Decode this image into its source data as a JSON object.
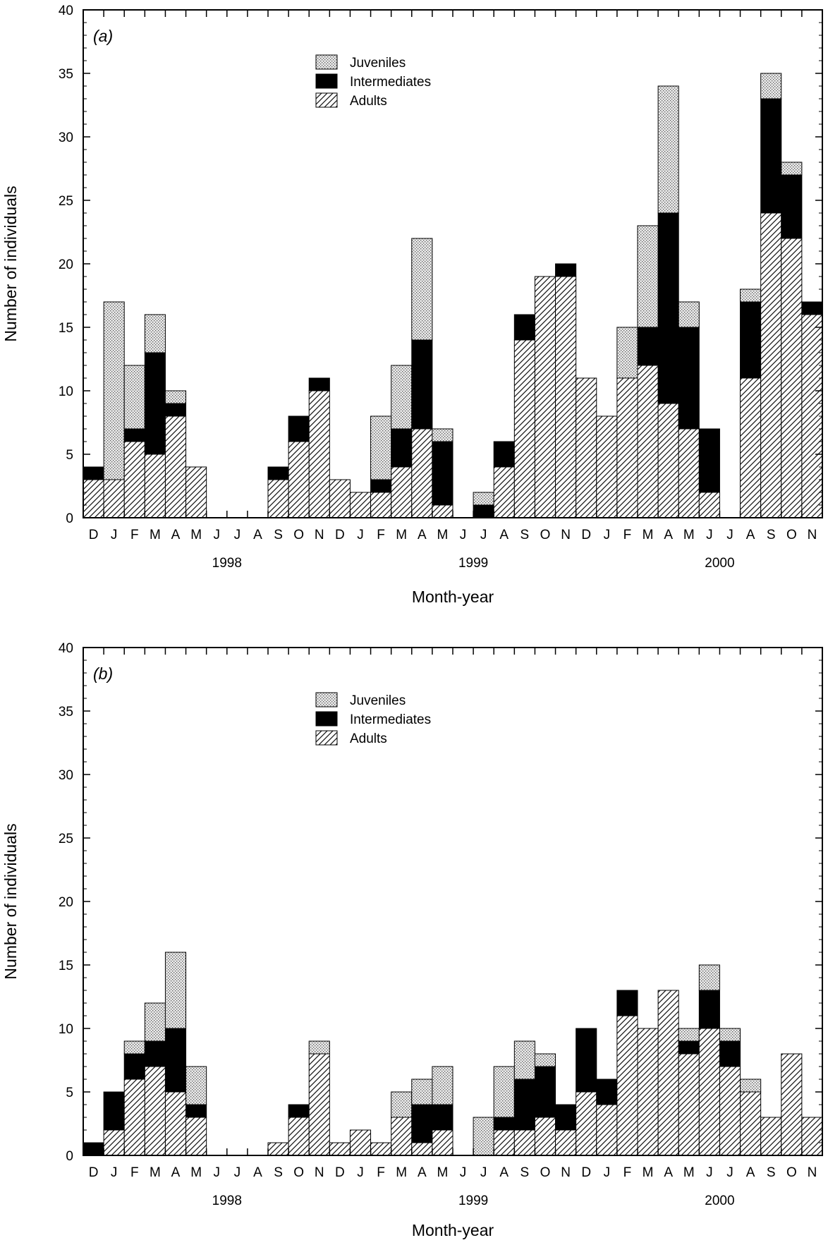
{
  "legend": {
    "juveniles": "Juveniles",
    "intermediates": "Intermediates",
    "adults": "Adults"
  },
  "colors": {
    "juveniles_bg": "#e9e9e9",
    "juveniles_dot": "#555555",
    "intermediates": "#000000",
    "adults_bg": "#ffffff",
    "hatch": "#111111",
    "axis": "#000000"
  },
  "chart_data": [
    {
      "type": "bar",
      "panel_label": "a",
      "stacked": true,
      "xlabel": "Month-year",
      "ylabel": "Number of individuals",
      "ylim": [
        0,
        40
      ],
      "yticks": [
        0,
        5,
        10,
        15,
        20,
        25,
        30,
        35,
        40
      ],
      "categories": [
        "D",
        "J",
        "F",
        "M",
        "A",
        "M",
        "J",
        "J",
        "A",
        "S",
        "O",
        "N",
        "D",
        "J",
        "F",
        "M",
        "A",
        "M",
        "J",
        "J",
        "A",
        "S",
        "O",
        "N",
        "D",
        "J",
        "F",
        "M",
        "A",
        "M",
        "J",
        "J",
        "A",
        "S",
        "O",
        "N"
      ],
      "year_labels": [
        {
          "label": "1998",
          "center_index": 6.5
        },
        {
          "label": "1999",
          "center_index": 18.5
        },
        {
          "label": "2000",
          "center_index": 30.5
        }
      ],
      "series": [
        {
          "name": "Adults",
          "values": [
            3,
            3,
            6,
            5,
            8,
            4,
            0,
            0,
            0,
            3,
            6,
            10,
            3,
            2,
            2,
            4,
            7,
            1,
            0,
            0,
            4,
            14,
            19,
            19,
            11,
            8,
            11,
            12,
            9,
            7,
            2,
            0,
            11,
            24,
            22,
            16
          ]
        },
        {
          "name": "Intermediates",
          "values": [
            1,
            0,
            1,
            8,
            1,
            0,
            0,
            0,
            0,
            1,
            2,
            1,
            0,
            0,
            1,
            3,
            7,
            5,
            0,
            1,
            2,
            2,
            0,
            1,
            0,
            0,
            0,
            3,
            15,
            8,
            5,
            0,
            6,
            9,
            5,
            1
          ]
        },
        {
          "name": "Juveniles",
          "values": [
            0,
            14,
            5,
            3,
            1,
            0,
            0,
            0,
            0,
            0,
            0,
            0,
            0,
            0,
            5,
            5,
            8,
            1,
            0,
            1,
            0,
            0,
            0,
            0,
            0,
            0,
            4,
            8,
            10,
            2,
            0,
            0,
            1,
            2,
            1,
            0
          ]
        }
      ]
    },
    {
      "type": "bar",
      "panel_label": "b",
      "stacked": true,
      "xlabel": "Month-year",
      "ylabel": "Number of individuals",
      "ylim": [
        0,
        40
      ],
      "yticks": [
        0,
        5,
        10,
        15,
        20,
        25,
        30,
        35,
        40
      ],
      "categories": [
        "D",
        "J",
        "F",
        "M",
        "A",
        "M",
        "J",
        "J",
        "A",
        "S",
        "O",
        "N",
        "D",
        "J",
        "F",
        "M",
        "A",
        "M",
        "J",
        "J",
        "A",
        "S",
        "O",
        "N",
        "D",
        "J",
        "F",
        "M",
        "A",
        "M",
        "J",
        "J",
        "A",
        "S",
        "O",
        "N"
      ],
      "year_labels": [
        {
          "label": "1998",
          "center_index": 6.5
        },
        {
          "label": "1999",
          "center_index": 18.5
        },
        {
          "label": "2000",
          "center_index": 30.5
        }
      ],
      "series": [
        {
          "name": "Adults",
          "values": [
            0,
            2,
            6,
            7,
            5,
            3,
            0,
            0,
            0,
            1,
            3,
            8,
            1,
            2,
            1,
            3,
            1,
            2,
            0,
            0,
            2,
            2,
            3,
            2,
            5,
            4,
            11,
            10,
            13,
            8,
            10,
            7,
            5,
            3,
            8,
            3
          ]
        },
        {
          "name": "Intermediates",
          "values": [
            1,
            3,
            2,
            2,
            5,
            1,
            0,
            0,
            0,
            0,
            1,
            0,
            0,
            0,
            0,
            0,
            3,
            2,
            0,
            0,
            1,
            4,
            4,
            2,
            5,
            2,
            2,
            0,
            0,
            1,
            3,
            2,
            0,
            0,
            0,
            0
          ]
        },
        {
          "name": "Juveniles",
          "values": [
            0,
            0,
            1,
            3,
            6,
            3,
            0,
            0,
            0,
            0,
            0,
            1,
            0,
            0,
            0,
            2,
            2,
            3,
            0,
            3,
            4,
            3,
            1,
            0,
            0,
            0,
            0,
            0,
            0,
            1,
            2,
            1,
            1,
            0,
            0,
            0
          ]
        }
      ]
    }
  ]
}
